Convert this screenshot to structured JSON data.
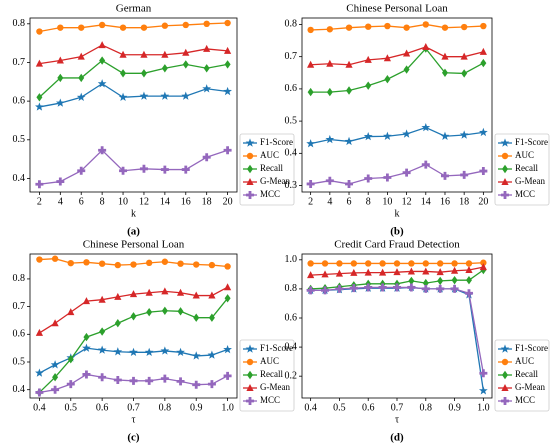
{
  "chart_data": [
    {
      "type": "line",
      "title": "German",
      "xlabel": "k",
      "panel_label": "(a)",
      "legend": "right",
      "x": [
        2,
        4,
        6,
        8,
        10,
        12,
        14,
        16,
        18,
        20
      ],
      "xlim": [
        1.1,
        20.9
      ],
      "xticks": [
        2,
        4,
        6,
        8,
        10,
        12,
        14,
        16,
        18,
        20
      ],
      "ylim": [
        0.365,
        0.815
      ],
      "yticks": [
        0.4,
        0.5,
        0.6,
        0.7,
        0.8
      ],
      "series": [
        {
          "name": "F1-Score",
          "color": "#1f77b4",
          "marker": "star",
          "values": [
            0.585,
            0.595,
            0.61,
            0.645,
            0.61,
            0.613,
            0.613,
            0.613,
            0.632,
            0.625
          ]
        },
        {
          "name": "AUC",
          "color": "#ff7f0e",
          "marker": "circle",
          "values": [
            0.78,
            0.79,
            0.79,
            0.797,
            0.79,
            0.79,
            0.795,
            0.797,
            0.8,
            0.802
          ]
        },
        {
          "name": "Recall",
          "color": "#2ca02c",
          "marker": "diamond",
          "values": [
            0.61,
            0.66,
            0.66,
            0.705,
            0.672,
            0.672,
            0.685,
            0.695,
            0.685,
            0.695
          ]
        },
        {
          "name": "G-Mean",
          "color": "#d62728",
          "marker": "triangle",
          "values": [
            0.697,
            0.705,
            0.715,
            0.745,
            0.72,
            0.72,
            0.72,
            0.725,
            0.735,
            0.73
          ]
        },
        {
          "name": "MCC",
          "color": "#9467bd",
          "marker": "plus",
          "values": [
            0.385,
            0.392,
            0.42,
            0.473,
            0.42,
            0.425,
            0.423,
            0.423,
            0.455,
            0.473
          ]
        }
      ]
    },
    {
      "type": "line",
      "title": "Chinese Personal Loan",
      "xlabel": "k",
      "panel_label": "(b)",
      "legend": "right",
      "x": [
        2,
        4,
        6,
        8,
        10,
        12,
        14,
        16,
        18,
        20
      ],
      "xlim": [
        1.1,
        20.9
      ],
      "xticks": [
        2,
        4,
        6,
        8,
        10,
        12,
        14,
        16,
        18,
        20
      ],
      "ylim": [
        0.28,
        0.82
      ],
      "yticks": [
        0.3,
        0.4,
        0.5,
        0.6,
        0.7,
        0.8
      ],
      "series": [
        {
          "name": "F1-Score",
          "color": "#1f77b4",
          "marker": "star",
          "values": [
            0.43,
            0.443,
            0.437,
            0.452,
            0.453,
            0.46,
            0.48,
            0.453,
            0.457,
            0.465
          ]
        },
        {
          "name": "AUC",
          "color": "#ff7f0e",
          "marker": "circle",
          "values": [
            0.783,
            0.785,
            0.79,
            0.793,
            0.795,
            0.79,
            0.8,
            0.79,
            0.792,
            0.795
          ]
        },
        {
          "name": "Recall",
          "color": "#2ca02c",
          "marker": "diamond",
          "values": [
            0.59,
            0.59,
            0.595,
            0.61,
            0.63,
            0.66,
            0.725,
            0.65,
            0.648,
            0.68
          ]
        },
        {
          "name": "G-Mean",
          "color": "#d62728",
          "marker": "triangle",
          "values": [
            0.675,
            0.678,
            0.675,
            0.69,
            0.695,
            0.71,
            0.73,
            0.7,
            0.7,
            0.715
          ]
        },
        {
          "name": "MCC",
          "color": "#9467bd",
          "marker": "plus",
          "values": [
            0.305,
            0.315,
            0.305,
            0.322,
            0.325,
            0.34,
            0.365,
            0.33,
            0.333,
            0.345
          ]
        }
      ]
    },
    {
      "type": "line",
      "title": "Chinese Personal Loan",
      "xlabel": "τ",
      "panel_label": "(c)",
      "legend": "right",
      "x": [
        0.4,
        0.45,
        0.5,
        0.55,
        0.6,
        0.65,
        0.7,
        0.75,
        0.8,
        0.85,
        0.9,
        0.95,
        1.0
      ],
      "xlim": [
        0.37,
        1.03
      ],
      "xticks": [
        0.4,
        0.5,
        0.6,
        0.7,
        0.8,
        0.9,
        {
          "value": 1.0,
          "label": "1.0"
        }
      ],
      "ylim": [
        0.37,
        0.89
      ],
      "yticks": [
        0.4,
        0.5,
        0.6,
        0.7,
        0.8
      ],
      "series": [
        {
          "name": "F1-Score",
          "color": "#1f77b4",
          "marker": "star",
          "values": [
            0.46,
            0.49,
            0.515,
            0.55,
            0.543,
            0.537,
            0.535,
            0.535,
            0.54,
            0.535,
            0.522,
            0.525,
            0.545
          ]
        },
        {
          "name": "AUC",
          "color": "#ff7f0e",
          "marker": "circle",
          "values": [
            0.87,
            0.873,
            0.857,
            0.86,
            0.855,
            0.85,
            0.852,
            0.858,
            0.862,
            0.855,
            0.852,
            0.85,
            0.845
          ]
        },
        {
          "name": "Recall",
          "color": "#2ca02c",
          "marker": "diamond",
          "values": [
            0.39,
            0.445,
            0.51,
            0.59,
            0.61,
            0.64,
            0.665,
            0.68,
            0.685,
            0.683,
            0.66,
            0.66,
            0.73
          ]
        },
        {
          "name": "G-Mean",
          "color": "#d62728",
          "marker": "triangle",
          "values": [
            0.605,
            0.64,
            0.68,
            0.72,
            0.725,
            0.735,
            0.745,
            0.75,
            0.755,
            0.75,
            0.74,
            0.74,
            0.77
          ]
        },
        {
          "name": "MCC",
          "color": "#9467bd",
          "marker": "plus",
          "values": [
            0.39,
            0.4,
            0.42,
            0.455,
            0.445,
            0.435,
            0.432,
            0.432,
            0.44,
            0.43,
            0.418,
            0.42,
            0.45
          ]
        }
      ]
    },
    {
      "type": "line",
      "title": "Credit Card Fraud Detection",
      "xlabel": "τ",
      "panel_label": "(d)",
      "legend": "right",
      "x": [
        0.4,
        0.45,
        0.5,
        0.55,
        0.6,
        0.65,
        0.7,
        0.75,
        0.8,
        0.85,
        0.9,
        0.95,
        1.0
      ],
      "xlim": [
        0.37,
        1.03
      ],
      "xticks": [
        0.4,
        0.5,
        0.6,
        0.7,
        0.8,
        0.9,
        {
          "value": 1.0,
          "label": "1.0"
        }
      ],
      "ylim": [
        0.05,
        1.04
      ],
      "yticks": [
        0.2,
        0.4,
        0.6,
        0.8,
        {
          "value": 1.0,
          "label": "1.0"
        }
      ],
      "series": [
        {
          "name": "F1-Score",
          "color": "#1f77b4",
          "marker": "star",
          "values": [
            0.79,
            0.79,
            0.795,
            0.8,
            0.805,
            0.805,
            0.805,
            0.81,
            0.8,
            0.8,
            0.8,
            0.76,
            0.1
          ]
        },
        {
          "name": "AUC",
          "color": "#ff7f0e",
          "marker": "circle",
          "values": [
            0.975,
            0.975,
            0.975,
            0.975,
            0.975,
            0.975,
            0.975,
            0.975,
            0.975,
            0.975,
            0.975,
            0.975,
            0.98
          ]
        },
        {
          "name": "Recall",
          "color": "#2ca02c",
          "marker": "diamond",
          "values": [
            0.8,
            0.805,
            0.815,
            0.825,
            0.835,
            0.835,
            0.835,
            0.855,
            0.84,
            0.855,
            0.86,
            0.86,
            0.93
          ]
        },
        {
          "name": "G-Mean",
          "color": "#d62728",
          "marker": "triangle",
          "values": [
            0.895,
            0.9,
            0.905,
            0.91,
            0.912,
            0.912,
            0.915,
            0.92,
            0.92,
            0.915,
            0.925,
            0.93,
            0.95
          ]
        },
        {
          "name": "MCC",
          "color": "#9467bd",
          "marker": "plus",
          "values": [
            0.79,
            0.79,
            0.8,
            0.805,
            0.81,
            0.81,
            0.81,
            0.81,
            0.8,
            0.8,
            0.8,
            0.77,
            0.22
          ]
        }
      ]
    }
  ]
}
